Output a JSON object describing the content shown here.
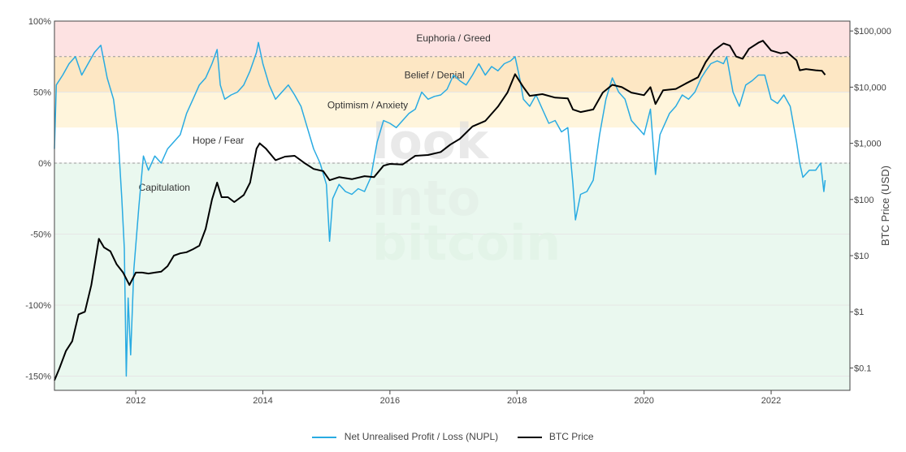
{
  "chart_data": {
    "type": "line",
    "title": "",
    "x_ticks": [
      "2012",
      "2014",
      "2016",
      "2018",
      "2020",
      "2022"
    ],
    "x_range": [
      2010.72,
      2023.24
    ],
    "y_left": {
      "ticks": [
        "100%",
        "50%",
        "0%",
        "-50%",
        "-100%",
        "-150%"
      ],
      "values": [
        1.0,
        0.5,
        0.0,
        -0.5,
        -1.0,
        -1.5
      ],
      "range": [
        -1.6,
        1.0
      ]
    },
    "y_right": {
      "title": "BTC Price (USD)",
      "scale": "log",
      "ticks": [
        "$100,000",
        "$10,000",
        "$1,000",
        "$100",
        "$10",
        "$1",
        "$0.1"
      ],
      "values": [
        100000,
        10000,
        1000,
        100,
        10,
        1,
        0.1
      ],
      "range": [
        0.04,
        150000
      ]
    },
    "zones": [
      {
        "label": "Euphoria / Greed",
        "from": 0.75,
        "to": 1.0,
        "color": "#fde2e2",
        "label_x": 2017.0,
        "label_y": 0.88
      },
      {
        "label": "Belief / Denial",
        "from": 0.5,
        "to": 0.75,
        "color": "#fde7c4",
        "label_x": 2016.7,
        "label_y": 0.62
      },
      {
        "label": "Optimism / Anxiety",
        "from": 0.25,
        "to": 0.5,
        "color": "#fff5dc",
        "label_x": 2015.65,
        "label_y": 0.41
      },
      {
        "label": "Hope / Fear",
        "from": 0.0,
        "to": 0.25,
        "color": "#ffffff",
        "label_x": 2013.3,
        "label_y": 0.16
      },
      {
        "label": "Capitulation",
        "from": -1.6,
        "to": 0.0,
        "color": "#eaf8ef",
        "label_x": 2012.45,
        "label_y": -0.17
      }
    ],
    "series": [
      {
        "name": "Net Unrealised Profit / Loss (NUPL)",
        "color": "#29abe2",
        "axis": "left",
        "points": [
          [
            2010.72,
            0.1
          ],
          [
            2010.75,
            0.55
          ],
          [
            2010.85,
            0.62
          ],
          [
            2010.95,
            0.7
          ],
          [
            2011.05,
            0.75
          ],
          [
            2011.15,
            0.62
          ],
          [
            2011.25,
            0.7
          ],
          [
            2011.35,
            0.78
          ],
          [
            2011.45,
            0.83
          ],
          [
            2011.55,
            0.6
          ],
          [
            2011.65,
            0.45
          ],
          [
            2011.72,
            0.2
          ],
          [
            2011.78,
            -0.25
          ],
          [
            2011.82,
            -0.6
          ],
          [
            2011.85,
            -1.5
          ],
          [
            2011.88,
            -0.95
          ],
          [
            2011.92,
            -1.35
          ],
          [
            2011.97,
            -0.75
          ],
          [
            2012.05,
            -0.3
          ],
          [
            2012.12,
            0.05
          ],
          [
            2012.2,
            -0.05
          ],
          [
            2012.3,
            0.05
          ],
          [
            2012.4,
            0.0
          ],
          [
            2012.5,
            0.1
          ],
          [
            2012.6,
            0.15
          ],
          [
            2012.7,
            0.2
          ],
          [
            2012.8,
            0.35
          ],
          [
            2012.9,
            0.45
          ],
          [
            2013.0,
            0.55
          ],
          [
            2013.1,
            0.6
          ],
          [
            2013.2,
            0.7
          ],
          [
            2013.28,
            0.8
          ],
          [
            2013.33,
            0.55
          ],
          [
            2013.4,
            0.45
          ],
          [
            2013.5,
            0.48
          ],
          [
            2013.6,
            0.5
          ],
          [
            2013.7,
            0.55
          ],
          [
            2013.8,
            0.65
          ],
          [
            2013.9,
            0.78
          ],
          [
            2013.93,
            0.85
          ],
          [
            2014.0,
            0.7
          ],
          [
            2014.1,
            0.55
          ],
          [
            2014.2,
            0.45
          ],
          [
            2014.3,
            0.5
          ],
          [
            2014.4,
            0.55
          ],
          [
            2014.5,
            0.48
          ],
          [
            2014.6,
            0.4
          ],
          [
            2014.7,
            0.25
          ],
          [
            2014.8,
            0.1
          ],
          [
            2014.9,
            0.0
          ],
          [
            2015.0,
            -0.15
          ],
          [
            2015.05,
            -0.55
          ],
          [
            2015.1,
            -0.25
          ],
          [
            2015.2,
            -0.15
          ],
          [
            2015.3,
            -0.2
          ],
          [
            2015.4,
            -0.22
          ],
          [
            2015.5,
            -0.18
          ],
          [
            2015.6,
            -0.2
          ],
          [
            2015.7,
            -0.1
          ],
          [
            2015.8,
            0.15
          ],
          [
            2015.9,
            0.3
          ],
          [
            2016.0,
            0.28
          ],
          [
            2016.1,
            0.25
          ],
          [
            2016.2,
            0.3
          ],
          [
            2016.3,
            0.35
          ],
          [
            2016.4,
            0.38
          ],
          [
            2016.5,
            0.5
          ],
          [
            2016.6,
            0.45
          ],
          [
            2016.7,
            0.47
          ],
          [
            2016.8,
            0.48
          ],
          [
            2016.9,
            0.52
          ],
          [
            2017.0,
            0.62
          ],
          [
            2017.1,
            0.58
          ],
          [
            2017.2,
            0.55
          ],
          [
            2017.3,
            0.62
          ],
          [
            2017.4,
            0.7
          ],
          [
            2017.5,
            0.62
          ],
          [
            2017.6,
            0.68
          ],
          [
            2017.7,
            0.65
          ],
          [
            2017.8,
            0.7
          ],
          [
            2017.9,
            0.72
          ],
          [
            2017.97,
            0.75
          ],
          [
            2018.05,
            0.58
          ],
          [
            2018.1,
            0.45
          ],
          [
            2018.2,
            0.4
          ],
          [
            2018.3,
            0.48
          ],
          [
            2018.4,
            0.38
          ],
          [
            2018.5,
            0.28
          ],
          [
            2018.6,
            0.3
          ],
          [
            2018.7,
            0.22
          ],
          [
            2018.8,
            0.25
          ],
          [
            2018.88,
            -0.15
          ],
          [
            2018.92,
            -0.4
          ],
          [
            2019.0,
            -0.22
          ],
          [
            2019.1,
            -0.2
          ],
          [
            2019.2,
            -0.12
          ],
          [
            2019.3,
            0.2
          ],
          [
            2019.4,
            0.45
          ],
          [
            2019.5,
            0.6
          ],
          [
            2019.6,
            0.5
          ],
          [
            2019.7,
            0.45
          ],
          [
            2019.8,
            0.3
          ],
          [
            2019.9,
            0.25
          ],
          [
            2020.0,
            0.2
          ],
          [
            2020.1,
            0.38
          ],
          [
            2020.18,
            -0.08
          ],
          [
            2020.25,
            0.2
          ],
          [
            2020.4,
            0.35
          ],
          [
            2020.5,
            0.4
          ],
          [
            2020.6,
            0.48
          ],
          [
            2020.7,
            0.45
          ],
          [
            2020.8,
            0.5
          ],
          [
            2020.9,
            0.6
          ],
          [
            2020.97,
            0.65
          ],
          [
            2021.05,
            0.7
          ],
          [
            2021.15,
            0.72
          ],
          [
            2021.25,
            0.7
          ],
          [
            2021.3,
            0.75
          ],
          [
            2021.4,
            0.5
          ],
          [
            2021.5,
            0.4
          ],
          [
            2021.6,
            0.55
          ],
          [
            2021.7,
            0.58
          ],
          [
            2021.8,
            0.62
          ],
          [
            2021.9,
            0.62
          ],
          [
            2022.0,
            0.45
          ],
          [
            2022.1,
            0.42
          ],
          [
            2022.2,
            0.48
          ],
          [
            2022.3,
            0.4
          ],
          [
            2022.4,
            0.15
          ],
          [
            2022.45,
            0.0
          ],
          [
            2022.5,
            -0.1
          ],
          [
            2022.6,
            -0.05
          ],
          [
            2022.7,
            -0.05
          ],
          [
            2022.78,
            0.0
          ],
          [
            2022.83,
            -0.2
          ],
          [
            2022.85,
            -0.12
          ]
        ]
      },
      {
        "name": "BTC Price",
        "color": "#000000",
        "axis": "right",
        "points": [
          [
            2010.72,
            0.06
          ],
          [
            2010.8,
            0.1
          ],
          [
            2010.9,
            0.2
          ],
          [
            2011.0,
            0.3
          ],
          [
            2011.1,
            0.9
          ],
          [
            2011.2,
            1.0
          ],
          [
            2011.3,
            3.0
          ],
          [
            2011.42,
            20.0
          ],
          [
            2011.5,
            14.0
          ],
          [
            2011.6,
            12.0
          ],
          [
            2011.7,
            7.0
          ],
          [
            2011.8,
            5.0
          ],
          [
            2011.9,
            3.0
          ],
          [
            2012.0,
            5.0
          ],
          [
            2012.1,
            5.0
          ],
          [
            2012.2,
            4.8
          ],
          [
            2012.3,
            5.0
          ],
          [
            2012.4,
            5.2
          ],
          [
            2012.5,
            6.5
          ],
          [
            2012.6,
            10.0
          ],
          [
            2012.7,
            11.0
          ],
          [
            2012.8,
            11.5
          ],
          [
            2012.9,
            13.0
          ],
          [
            2013.0,
            15.0
          ],
          [
            2013.1,
            30.0
          ],
          [
            2013.2,
            100.0
          ],
          [
            2013.28,
            200.0
          ],
          [
            2013.35,
            110.0
          ],
          [
            2013.45,
            110.0
          ],
          [
            2013.55,
            90.0
          ],
          [
            2013.7,
            120.0
          ],
          [
            2013.8,
            200.0
          ],
          [
            2013.9,
            800.0
          ],
          [
            2013.95,
            1000.0
          ],
          [
            2014.05,
            800.0
          ],
          [
            2014.2,
            500.0
          ],
          [
            2014.35,
            580.0
          ],
          [
            2014.5,
            600.0
          ],
          [
            2014.65,
            450.0
          ],
          [
            2014.8,
            350.0
          ],
          [
            2014.95,
            320.0
          ],
          [
            2015.05,
            220.0
          ],
          [
            2015.2,
            250.0
          ],
          [
            2015.4,
            230.0
          ],
          [
            2015.6,
            260.0
          ],
          [
            2015.75,
            250.0
          ],
          [
            2015.9,
            400.0
          ],
          [
            2016.0,
            430.0
          ],
          [
            2016.2,
            420.0
          ],
          [
            2016.4,
            600.0
          ],
          [
            2016.6,
            620.0
          ],
          [
            2016.8,
            700.0
          ],
          [
            2016.95,
            950.0
          ],
          [
            2017.1,
            1200.0
          ],
          [
            2017.3,
            2000.0
          ],
          [
            2017.5,
            2500.0
          ],
          [
            2017.7,
            4500.0
          ],
          [
            2017.85,
            8000.0
          ],
          [
            2017.97,
            17000.0
          ],
          [
            2018.1,
            10000.0
          ],
          [
            2018.2,
            7000.0
          ],
          [
            2018.4,
            7500.0
          ],
          [
            2018.6,
            6500.0
          ],
          [
            2018.8,
            6300.0
          ],
          [
            2018.88,
            4000.0
          ],
          [
            2019.0,
            3600.0
          ],
          [
            2019.2,
            4000.0
          ],
          [
            2019.35,
            8000.0
          ],
          [
            2019.5,
            11000.0
          ],
          [
            2019.65,
            10000.0
          ],
          [
            2019.8,
            8000.0
          ],
          [
            2020.0,
            7200.0
          ],
          [
            2020.1,
            10000.0
          ],
          [
            2020.18,
            5000.0
          ],
          [
            2020.3,
            8800.0
          ],
          [
            2020.5,
            9300.0
          ],
          [
            2020.65,
            11500.0
          ],
          [
            2020.85,
            15000.0
          ],
          [
            2020.97,
            28000.0
          ],
          [
            2021.1,
            45000.0
          ],
          [
            2021.25,
            60000.0
          ],
          [
            2021.35,
            55000.0
          ],
          [
            2021.45,
            35000.0
          ],
          [
            2021.55,
            32000.0
          ],
          [
            2021.65,
            48000.0
          ],
          [
            2021.8,
            62000.0
          ],
          [
            2021.87,
            67000.0
          ],
          [
            2022.0,
            45000.0
          ],
          [
            2022.15,
            40000.0
          ],
          [
            2022.25,
            42000.0
          ],
          [
            2022.4,
            30000.0
          ],
          [
            2022.45,
            20000.0
          ],
          [
            2022.55,
            21000.0
          ],
          [
            2022.7,
            20000.0
          ],
          [
            2022.8,
            19500.0
          ],
          [
            2022.85,
            16500.0
          ]
        ]
      }
    ],
    "legend": {
      "placement": "bottom-center",
      "items": [
        {
          "label": "Net Unrealised Profit / Loss (NUPL)",
          "color": "#29abe2"
        },
        {
          "label": "BTC Price",
          "color": "#000000"
        }
      ]
    },
    "watermark": [
      "look",
      "into",
      "bitcoin"
    ]
  }
}
